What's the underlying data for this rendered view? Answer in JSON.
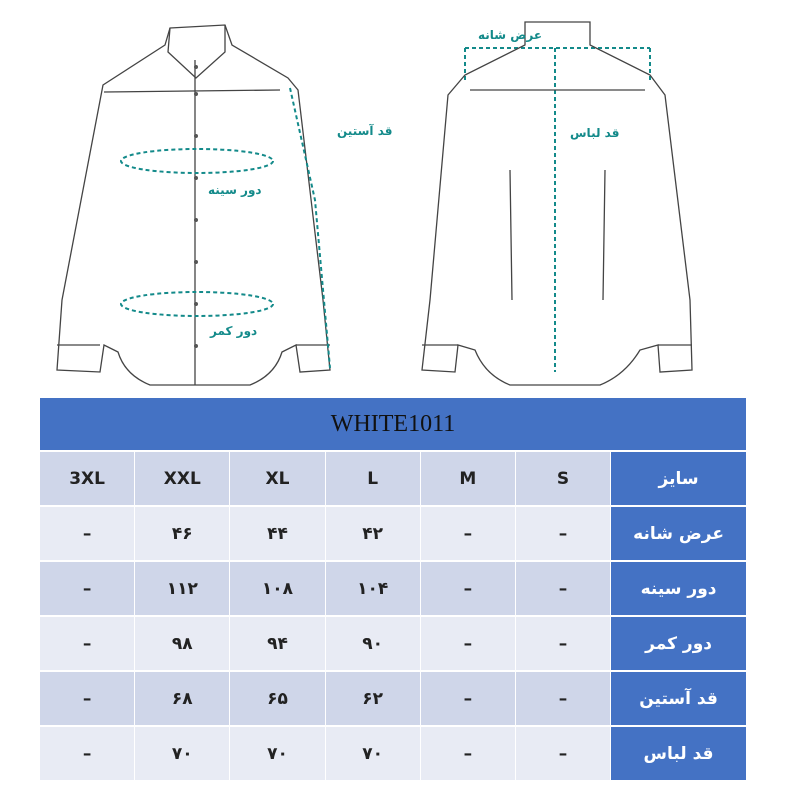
{
  "diagram": {
    "labels": {
      "shoulder_width": "عرض شانه",
      "sleeve_length": "قد آستین",
      "chest": "دور سینه",
      "waist": "دور کمر",
      "garment_length": "قد لباس"
    },
    "accent_color": "#138a8a"
  },
  "table": {
    "title": "WHITE1011",
    "header_color": "#4472c4",
    "size_row": {
      "label": "سایز",
      "values": [
        "3XL",
        "XXL",
        "XL",
        "L",
        "M",
        "S"
      ]
    },
    "rows": [
      {
        "label": "عرض شانه",
        "values": [
          "–",
          "۴۶",
          "۴۴",
          "۴۲",
          "–",
          "–"
        ]
      },
      {
        "label": "دور سینه",
        "values": [
          "–",
          "۱۱۲",
          "۱۰۸",
          "۱۰۴",
          "–",
          "–"
        ]
      },
      {
        "label": "دور کمر",
        "values": [
          "–",
          "۹۸",
          "۹۴",
          "۹۰",
          "–",
          "–"
        ]
      },
      {
        "label": "قد آستین",
        "values": [
          "–",
          "۶۸",
          "۶۵",
          "۶۲",
          "–",
          "–"
        ]
      },
      {
        "label": "قد لباس",
        "values": [
          "–",
          "۷۰",
          "۷۰",
          "۷۰",
          "–",
          "–"
        ]
      }
    ]
  }
}
